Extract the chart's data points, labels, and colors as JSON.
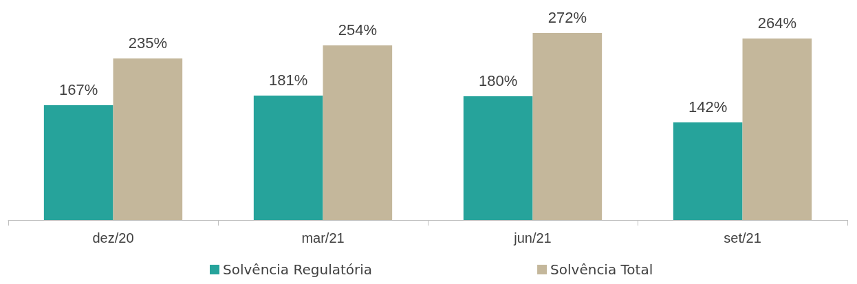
{
  "chart_data": {
    "type": "bar",
    "categories": [
      "dez/20",
      "mar/21",
      "jun/21",
      "set/21"
    ],
    "series": [
      {
        "name": "Solvência Regulatória",
        "color": "#26a39b",
        "values": [
          167,
          181,
          180,
          142
        ],
        "value_labels": [
          "167%",
          "181%",
          "180%",
          "142%"
        ]
      },
      {
        "name": "Solvência Total",
        "color": "#c4b79b",
        "values": [
          235,
          254,
          272,
          264
        ],
        "value_labels": [
          "235%",
          "254%",
          "272%",
          "264%"
        ]
      }
    ],
    "legend": "bottom"
  }
}
